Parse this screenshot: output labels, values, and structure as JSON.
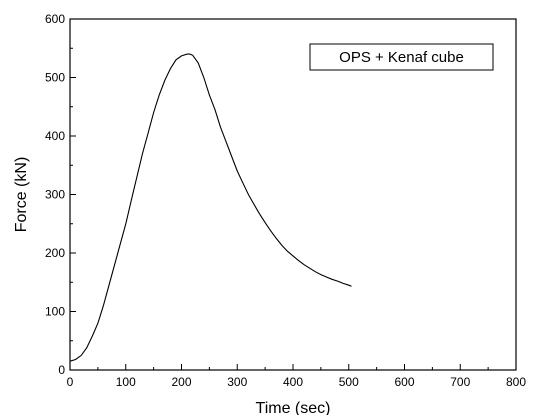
{
  "chart_data": {
    "type": "line",
    "xlabel": "Time (sec)",
    "ylabel": "Force (kN)",
    "xlim": [
      0,
      800
    ],
    "ylim": [
      0,
      600
    ],
    "xticks": [
      0,
      100,
      200,
      300,
      400,
      500,
      600,
      700,
      800
    ],
    "yticks": [
      0,
      100,
      200,
      300,
      400,
      500,
      600
    ],
    "grid": false,
    "legend_position": "top-right",
    "series": [
      {
        "name": "OPS + Kenaf cube",
        "color": "#000000",
        "x": [
          0,
          10,
          20,
          30,
          40,
          50,
          60,
          70,
          80,
          90,
          100,
          110,
          120,
          130,
          140,
          150,
          160,
          170,
          180,
          190,
          200,
          210,
          215,
          220,
          230,
          240,
          250,
          260,
          270,
          280,
          290,
          300,
          310,
          320,
          330,
          340,
          350,
          360,
          370,
          380,
          390,
          400,
          410,
          420,
          430,
          440,
          450,
          460,
          470,
          480,
          490,
          500,
          505
        ],
        "y": [
          15,
          18,
          25,
          38,
          58,
          80,
          110,
          145,
          180,
          215,
          250,
          290,
          330,
          370,
          405,
          440,
          470,
          495,
          515,
          530,
          537,
          540,
          540,
          538,
          525,
          500,
          470,
          445,
          415,
          390,
          365,
          340,
          320,
          300,
          283,
          267,
          252,
          238,
          225,
          213,
          203,
          195,
          187,
          180,
          174,
          168,
          163,
          159,
          155,
          152,
          148,
          145,
          143
        ]
      }
    ]
  }
}
